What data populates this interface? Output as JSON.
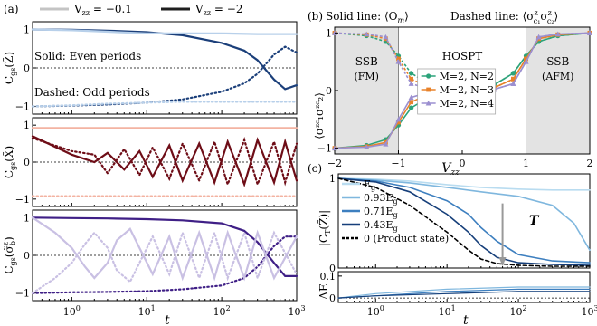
{
  "panel_a": {
    "label": "(a)",
    "legend": [
      {
        "text": "V",
        "sub": "zz",
        "value": " = −0.1",
        "color": "#c4c4c4"
      },
      {
        "text": "V",
        "sub": "zz",
        "value": " = −2",
        "color": "#1f1f1f"
      }
    ],
    "annot_solid": "Solid: Even periods",
    "annot_dashed": "Dashed: Odd periods",
    "rows": [
      {
        "ylabel": "C",
        "ysub": "gs",
        "ysuffix": "(Z̃)",
        "yticks": [
          "1",
          "0",
          "−1"
        ]
      },
      {
        "ylabel": "C",
        "ysub": "gs",
        "ysuffix": "(X̃)",
        "yticks": [
          "1",
          "0",
          "−1"
        ]
      },
      {
        "ylabel": "C",
        "ysub": "gs",
        "ysuffix": "(σ̃",
        "ysup2": "z",
        "ysub2": "b",
        "yticks": [
          "1",
          "0",
          "−1"
        ]
      }
    ],
    "xlabel": "t",
    "xticks": [
      "10",
      "10",
      "10",
      "10"
    ],
    "xtick_exp": [
      "0",
      "1",
      "2",
      "3"
    ]
  },
  "panel_b": {
    "label": "(b)",
    "header_left": "Solid line: ⟨O",
    "header_left_sub": "m",
    "header_left_end": "⟩",
    "header_right": "Dashed line: ⟨σ",
    "header_right_sup1": "z",
    "header_right_sub1": "c₁",
    "header_right_mid": "σ",
    "header_right_sup2": "z",
    "header_right_sub2": "c₂",
    "header_right_end": "⟩",
    "ylabel": "⟨σᶻᶜ₁σᶻᶜ₂⟩",
    "xlabel": "V",
    "xlabel_sub": "zz",
    "region_left": "SSB",
    "region_left_sub": "(FM)",
    "region_mid": "HOSPT",
    "region_right": "SSB",
    "region_right_sub": "(AFM)",
    "xticks": [
      "−2",
      "−1",
      "0",
      "1",
      "2"
    ],
    "yticks": [
      "1",
      "0",
      "−1"
    ],
    "legend": [
      {
        "text": "M=2, N=2",
        "color": "#2ca37a"
      },
      {
        "text": "M=2, N=3",
        "color": "#e8822a"
      },
      {
        "text": "M=2, N=4",
        "color": "#9b8fd0"
      }
    ]
  },
  "panel_c": {
    "label": "(c)",
    "ylabel_top": "|C",
    "ylabel_top_sub": "T",
    "ylabel_top_end": "(Z̃)|",
    "ylabel_bot": "ΔE",
    "yticks_top": [
      "1",
      "0"
    ],
    "yticks_bot": [
      "0.1",
      "0"
    ],
    "xlabel": "t",
    "xticks": [
      "10",
      "10",
      "10",
      "10"
    ],
    "xtick_exp": [
      "0",
      "1",
      "2",
      "3"
    ],
    "arrow_label": "T",
    "legend": [
      {
        "text": "E",
        "sub": "g",
        "color": "#b9dcf0",
        "dash": false
      },
      {
        "text": "0.93E",
        "sub": "g",
        "color": "#7fb7de",
        "dash": false
      },
      {
        "text": "0.71E",
        "sub": "g",
        "color": "#3d7fbf",
        "dash": false
      },
      {
        "text": "0.43E",
        "sub": "g",
        "color": "#163f7a",
        "dash": false
      },
      {
        "text": "0 (Product state)",
        "sub": "",
        "color": "#000000",
        "dash": true
      }
    ]
  },
  "chart_data": [
    {
      "type": "line",
      "panel": "(a) top",
      "ylabel": "C_gs(Z̃)",
      "xlabel": "t",
      "x_scale": "log",
      "xlim": [
        0.3,
        1000
      ],
      "ylim": [
        -1.2,
        1.2
      ],
      "series": [
        {
          "name": "V_zz = −2, even",
          "style": "solid",
          "color": "#1b3f7a",
          "x": [
            0.3,
            1,
            3,
            10,
            30,
            100,
            200,
            300,
            500,
            700,
            1000
          ],
          "y": [
            1.0,
            0.99,
            0.97,
            0.93,
            0.85,
            0.65,
            0.45,
            0.2,
            -0.3,
            -0.55,
            -0.45
          ]
        },
        {
          "name": "V_zz = −2, odd",
          "style": "dotted",
          "color": "#1b3f7a",
          "x": [
            0.3,
            1,
            3,
            10,
            30,
            100,
            200,
            300,
            500,
            700,
            1000
          ],
          "y": [
            -1.0,
            -0.98,
            -0.95,
            -0.9,
            -0.82,
            -0.62,
            -0.4,
            -0.15,
            0.35,
            0.55,
            0.4
          ]
        },
        {
          "name": "V_zz = −0.1, even",
          "style": "solid",
          "color": "#b8d0ea",
          "x": [
            0.3,
            1,
            3,
            10,
            30,
            100,
            300,
            1000
          ],
          "y": [
            1.0,
            0.98,
            0.94,
            0.9,
            0.9,
            0.9,
            0.88,
            0.88
          ]
        },
        {
          "name": "V_zz = −0.1, odd",
          "style": "dotted",
          "color": "#b8d0ea",
          "x": [
            0.3,
            1,
            3,
            10,
            30,
            100,
            300,
            1000
          ],
          "y": [
            -1.0,
            -0.97,
            -0.93,
            -0.9,
            -0.88,
            -0.88,
            -0.88,
            -0.88
          ]
        }
      ]
    },
    {
      "type": "line",
      "panel": "(a) middle",
      "ylabel": "C_gs(X̃)",
      "xlabel": "t",
      "x_scale": "log",
      "xlim": [
        0.3,
        1000
      ],
      "ylim": [
        -1.2,
        1.2
      ],
      "series": [
        {
          "name": "V_zz = −2, even",
          "style": "solid",
          "color": "#6e0d17",
          "x": [
            0.3,
            1,
            2,
            3,
            5,
            8,
            12,
            20,
            30,
            50,
            80,
            120,
            200,
            300,
            500,
            700,
            1000
          ],
          "y": [
            0.7,
            0.2,
            0.0,
            0.25,
            -0.2,
            0.3,
            -0.4,
            0.45,
            -0.5,
            0.5,
            -0.55,
            0.55,
            -0.6,
            0.6,
            -0.55,
            0.55,
            -0.5
          ]
        },
        {
          "name": "V_zz = −2, odd",
          "style": "dotted",
          "color": "#6e0d17",
          "x": [
            0.3,
            1,
            2,
            3,
            5,
            8,
            12,
            20,
            30,
            50,
            80,
            120,
            200,
            300,
            500,
            700,
            1000
          ],
          "y": [
            0.65,
            0.3,
            0.2,
            -0.3,
            0.35,
            -0.35,
            0.4,
            -0.45,
            0.5,
            -0.5,
            0.55,
            -0.6,
            0.6,
            -0.6,
            0.55,
            -0.55,
            0.5
          ]
        },
        {
          "name": "V_zz = −0.1, even",
          "style": "solid",
          "color": "#f3b3a2",
          "x": [
            0.3,
            1000
          ],
          "y": [
            0.92,
            0.92
          ]
        },
        {
          "name": "V_zz = −0.1, odd",
          "style": "dotted",
          "color": "#f3b3a2",
          "x": [
            0.3,
            1000
          ],
          "y": [
            -0.92,
            -0.92
          ]
        }
      ]
    },
    {
      "type": "line",
      "panel": "(a) bottom",
      "ylabel": "C_gs(σ̃^z_b)",
      "xlabel": "t",
      "x_scale": "log",
      "xlim": [
        0.3,
        1000
      ],
      "ylim": [
        -1.2,
        1.2
      ],
      "series": [
        {
          "name": "V_zz = −2, even",
          "style": "solid",
          "color": "#3f1f86",
          "x": [
            0.3,
            1,
            3,
            10,
            30,
            100,
            200,
            300,
            500,
            700,
            1000
          ],
          "y": [
            1.0,
            0.99,
            0.98,
            0.96,
            0.93,
            0.85,
            0.65,
            0.35,
            -0.2,
            -0.55,
            -0.55
          ]
        },
        {
          "name": "V_zz = −2, odd",
          "style": "dotted",
          "color": "#3f1f86",
          "x": [
            0.3,
            1,
            3,
            10,
            30,
            100,
            200,
            300,
            500,
            700,
            1000
          ],
          "y": [
            -1.0,
            -0.98,
            -0.97,
            -0.95,
            -0.9,
            -0.8,
            -0.6,
            -0.3,
            0.25,
            0.5,
            0.5
          ]
        },
        {
          "name": "V_zz = −0.1, even",
          "style": "solid",
          "color": "#c9c0e3",
          "x": [
            0.3,
            0.6,
            1,
            1.5,
            2,
            3,
            4,
            6,
            8,
            12,
            20,
            30,
            50,
            80,
            120,
            200,
            300,
            500,
            1000
          ],
          "y": [
            1.0,
            0.6,
            0.2,
            -0.3,
            -0.6,
            -0.2,
            0.4,
            0.7,
            0.2,
            -0.5,
            0.5,
            -0.6,
            0.6,
            -0.6,
            0.6,
            -0.6,
            0.6,
            -0.6,
            0.5
          ]
        },
        {
          "name": "V_zz = −0.1, odd",
          "style": "dotted",
          "color": "#c9c0e3",
          "x": [
            0.3,
            0.6,
            1,
            1.5,
            2,
            3,
            4,
            6,
            8,
            12,
            20,
            30,
            50,
            80,
            120,
            200,
            300,
            500,
            1000
          ],
          "y": [
            -1.0,
            -0.6,
            -0.2,
            0.3,
            0.6,
            0.2,
            -0.4,
            -0.7,
            -0.2,
            0.5,
            -0.5,
            0.6,
            -0.6,
            0.6,
            -0.6,
            0.6,
            -0.6,
            0.6,
            -0.5
          ]
        }
      ]
    },
    {
      "type": "line",
      "panel": "(b)",
      "ylabel": "⟨σ^z_c1 σ^z_c2⟩",
      "xlabel": "V_zz",
      "xlim": [
        -2,
        2
      ],
      "ylim": [
        -1.1,
        1.1
      ],
      "shaded_regions": [
        [
          -2,
          -1
        ],
        [
          1,
          2
        ]
      ],
      "series": [
        {
          "name": "M=2, N=2",
          "marker": "circle",
          "color": "#2ca37a",
          "x": [
            -2,
            -1.5,
            -1.2,
            -1,
            -0.8,
            -0.5,
            0,
            0.5,
            0.8,
            1,
            1.2,
            1.5,
            2
          ],
          "y_solid": [
            -1.0,
            -0.95,
            -0.85,
            -0.6,
            -0.3,
            -0.1,
            0.0,
            0.1,
            0.3,
            0.6,
            0.85,
            0.95,
            1.0
          ],
          "y_dashed": [
            1.0,
            0.95,
            0.85,
            0.6,
            0.3,
            0.1,
            0.0,
            0.1,
            0.3,
            0.6,
            0.85,
            0.95,
            1.0
          ]
        },
        {
          "name": "M=2, N=3",
          "marker": "square",
          "color": "#e8822a",
          "x": [
            -2,
            -1.5,
            -1.2,
            -1,
            -0.8,
            -0.5,
            0,
            0.5,
            0.8,
            1,
            1.2,
            1.5,
            2
          ],
          "y_solid": [
            -1.0,
            -0.97,
            -0.9,
            -0.55,
            -0.2,
            -0.05,
            0.0,
            0.05,
            0.2,
            0.55,
            0.9,
            0.97,
            1.0
          ],
          "y_dashed": [
            1.0,
            0.97,
            0.9,
            0.55,
            0.2,
            0.05,
            0.0,
            0.05,
            0.2,
            0.55,
            0.9,
            0.97,
            1.0
          ]
        },
        {
          "name": "M=2, N=4",
          "marker": "triangle",
          "color": "#9b8fd0",
          "x": [
            -2,
            -1.5,
            -1.2,
            -1,
            -0.8,
            -0.5,
            0,
            0.5,
            0.8,
            1,
            1.2,
            1.5,
            2
          ],
          "y_solid": [
            -1.0,
            -0.98,
            -0.93,
            -0.5,
            -0.12,
            -0.02,
            0.0,
            0.02,
            0.12,
            0.5,
            0.93,
            0.98,
            1.0
          ],
          "y_dashed": [
            1.0,
            0.98,
            0.93,
            0.5,
            0.12,
            0.02,
            0.0,
            0.02,
            0.12,
            0.5,
            0.93,
            0.98,
            1.0
          ]
        }
      ]
    },
    {
      "type": "line",
      "panel": "(c) top",
      "ylabel": "|C_T(Z̃)|",
      "xlabel": "t",
      "x_scale": "log",
      "xlim": [
        0.3,
        1000
      ],
      "ylim": [
        0,
        1.05
      ],
      "series": [
        {
          "name": "E_g",
          "color": "#b9dcf0",
          "style": "solid",
          "x": [
            0.3,
            1,
            3,
            10,
            30,
            100,
            300,
            1000
          ],
          "y": [
            1.0,
            0.99,
            0.97,
            0.93,
            0.9,
            0.88,
            0.87,
            0.87
          ]
        },
        {
          "name": "0.93E_g",
          "color": "#7fb7de",
          "style": "solid",
          "x": [
            0.3,
            1,
            3,
            10,
            30,
            100,
            300,
            600,
            1000
          ],
          "y": [
            1.0,
            0.98,
            0.95,
            0.9,
            0.85,
            0.8,
            0.7,
            0.5,
            0.2
          ]
        },
        {
          "name": "0.71E_g",
          "color": "#3d7fbf",
          "style": "solid",
          "x": [
            0.3,
            1,
            3,
            10,
            20,
            30,
            50,
            100,
            300,
            1000
          ],
          "y": [
            1.0,
            0.97,
            0.9,
            0.75,
            0.6,
            0.45,
            0.3,
            0.15,
            0.08,
            0.06
          ]
        },
        {
          "name": "0.43E_g",
          "color": "#163f7a",
          "style": "solid",
          "x": [
            0.3,
            1,
            3,
            10,
            20,
            30,
            50,
            100,
            300,
            1000
          ],
          "y": [
            1.0,
            0.96,
            0.85,
            0.6,
            0.4,
            0.25,
            0.12,
            0.06,
            0.04,
            0.03
          ]
        },
        {
          "name": "0 (Product state)",
          "color": "#000000",
          "style": "dashed",
          "x": [
            0.3,
            1,
            3,
            10,
            20,
            30,
            50,
            100,
            300,
            1000
          ],
          "y": [
            1.0,
            0.9,
            0.7,
            0.4,
            0.2,
            0.1,
            0.05,
            0.03,
            0.02,
            0.02
          ]
        }
      ]
    },
    {
      "type": "line",
      "panel": "(c) bottom",
      "ylabel": "ΔE",
      "xlabel": "t",
      "x_scale": "log",
      "xlim": [
        0.3,
        1000
      ],
      "ylim": [
        -0.02,
        0.12
      ],
      "series": [
        {
          "name": "E_g",
          "color": "#b9dcf0",
          "x": [
            0.3,
            1,
            10,
            100,
            1000
          ],
          "y": [
            0.0,
            0.01,
            0.02,
            0.03,
            0.03
          ]
        },
        {
          "name": "0.93E_g",
          "color": "#7fb7de",
          "x": [
            0.3,
            1,
            10,
            100,
            1000
          ],
          "y": [
            0.0,
            0.02,
            0.04,
            0.05,
            0.05
          ]
        },
        {
          "name": "0.71E_g",
          "color": "#3d7fbf",
          "x": [
            0.3,
            1,
            10,
            100,
            1000
          ],
          "y": [
            0.0,
            0.01,
            0.03,
            0.04,
            0.04
          ]
        },
        {
          "name": "0.43E_g",
          "color": "#163f7a",
          "x": [
            0.3,
            1,
            10,
            100,
            1000
          ],
          "y": [
            0.0,
            0.01,
            0.02,
            0.03,
            0.03
          ]
        }
      ]
    }
  ]
}
